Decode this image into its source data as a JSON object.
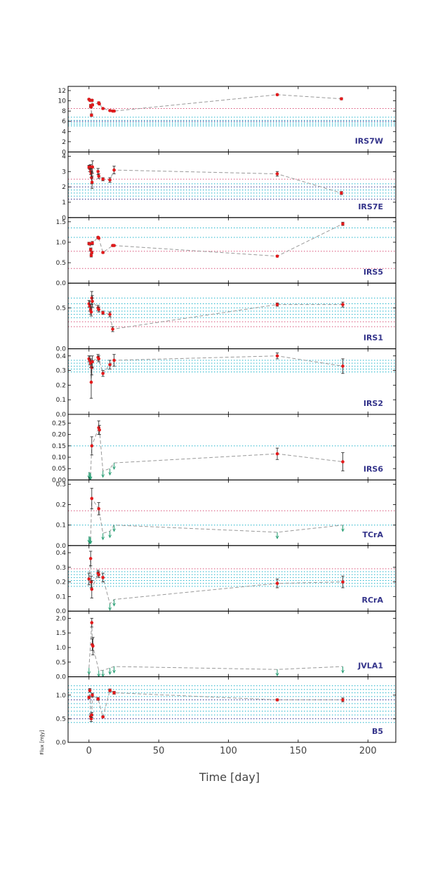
{
  "chart_data": {
    "type": "line",
    "x_title": "Time [day]",
    "y_title": "Flux [mJy]",
    "xlim": [
      -15,
      220
    ],
    "x_ticks": [
      0,
      50,
      100,
      150,
      200
    ],
    "colors": {
      "point": "#e31a1c",
      "connector": "#999999",
      "threshold_red": "#d9547a",
      "threshold_blue": "#2f2f8f",
      "threshold_cyan": "#22b5cc",
      "upper_limit": "#1f9a6e",
      "panel_name": "#33338a"
    },
    "panels": [
      {
        "name": "IRS7W",
        "ylim": [
          0,
          12
        ],
        "yticks": [
          0,
          2,
          4,
          6,
          8,
          10,
          12
        ],
        "points": [
          {
            "x": 0,
            "y": 10.3,
            "err": 0.15
          },
          {
            "x": 0.6,
            "y": 10.1,
            "err": 0.15
          },
          {
            "x": 1.2,
            "y": 9.0,
            "err": 0.3
          },
          {
            "x": 1.5,
            "y": 8.8,
            "err": 0.2
          },
          {
            "x": 1.8,
            "y": 7.2,
            "err": 0.25
          },
          {
            "x": 2.2,
            "y": 10.1,
            "err": 0.2
          },
          {
            "x": 2.5,
            "y": 9.2,
            "err": 0.2
          },
          {
            "x": 7,
            "y": 9.6,
            "err": 0.2
          },
          {
            "x": 7.4,
            "y": 9.4,
            "err": 0.15
          },
          {
            "x": 10,
            "y": 8.5,
            "err": 0.15
          },
          {
            "x": 15,
            "y": 8.1,
            "err": 0.15
          },
          {
            "x": 17,
            "y": 8.0,
            "err": 0.15
          },
          {
            "x": 18,
            "y": 8.0,
            "err": 0.15
          },
          {
            "x": 135,
            "y": 11.2,
            "err": 0.15
          },
          {
            "x": 181,
            "y": 10.4,
            "err": 0.2
          }
        ],
        "limits": [],
        "hlines": [
          {
            "y": 8.5,
            "color": "red"
          },
          {
            "y": 6.8,
            "color": "cyan"
          },
          {
            "y": 6.2,
            "color": "cyan"
          },
          {
            "y": 6.0,
            "color": "blue"
          },
          {
            "y": 5.7,
            "color": "cyan"
          },
          {
            "y": 5.4,
            "color": "cyan"
          },
          {
            "y": 5.1,
            "color": "cyan"
          }
        ]
      },
      {
        "name": "IRS7E",
        "ylim": [
          0,
          4
        ],
        "yticks": [
          0,
          1,
          2,
          3,
          4
        ],
        "points": [
          {
            "x": 0,
            "y": 3.3,
            "err": 0.1
          },
          {
            "x": 0.5,
            "y": 3.2,
            "err": 0.2
          },
          {
            "x": 1,
            "y": 3.3,
            "err": 0.15
          },
          {
            "x": 1.3,
            "y": 3.0,
            "err": 0.2
          },
          {
            "x": 1.6,
            "y": 2.9,
            "err": 0.3
          },
          {
            "x": 1.9,
            "y": 2.6,
            "err": 0.4
          },
          {
            "x": 2.2,
            "y": 2.3,
            "err": 0.4
          },
          {
            "x": 2.5,
            "y": 3.3,
            "err": 0.4
          },
          {
            "x": 6.5,
            "y": 3.0,
            "err": 0.2
          },
          {
            "x": 7,
            "y": 2.7,
            "err": 0.15
          },
          {
            "x": 10,
            "y": 2.5,
            "err": 0.1
          },
          {
            "x": 15,
            "y": 2.45,
            "err": 0.15
          },
          {
            "x": 18,
            "y": 3.1,
            "err": 0.25
          },
          {
            "x": 135,
            "y": 2.85,
            "err": 0.15
          },
          {
            "x": 181,
            "y": 1.6,
            "err": 0.1
          }
        ],
        "limits": [],
        "hlines": [
          {
            "y": 2.5,
            "color": "red"
          },
          {
            "y": 2.2,
            "color": "cyan"
          },
          {
            "y": 2.0,
            "color": "blue"
          },
          {
            "y": 1.8,
            "color": "cyan"
          },
          {
            "y": 1.6,
            "color": "cyan"
          },
          {
            "y": 1.4,
            "color": "cyan"
          },
          {
            "y": 1.2,
            "color": "blue"
          }
        ]
      },
      {
        "name": "IRS5",
        "ylim": [
          0,
          1.5
        ],
        "yticks": [
          0,
          0.5,
          1.0,
          1.5
        ],
        "ytick_labels": [
          "0.0",
          "0.5",
          "1.0",
          "1.5"
        ],
        "points": [
          {
            "x": 0,
            "y": 0.97,
            "err": 0.03
          },
          {
            "x": 0.6,
            "y": 0.96,
            "err": 0.03
          },
          {
            "x": 1.2,
            "y": 0.82,
            "err": 0.04
          },
          {
            "x": 1.6,
            "y": 0.68,
            "err": 0.04
          },
          {
            "x": 2,
            "y": 0.75,
            "err": 0.03
          },
          {
            "x": 2.4,
            "y": 0.98,
            "err": 0.04
          },
          {
            "x": 6.5,
            "y": 1.12,
            "err": 0.02
          },
          {
            "x": 7,
            "y": 1.1,
            "err": 0.02
          },
          {
            "x": 10,
            "y": 0.75,
            "err": 0.02
          },
          {
            "x": 17,
            "y": 0.92,
            "err": 0.02
          },
          {
            "x": 18,
            "y": 0.92,
            "err": 0.02
          },
          {
            "x": 135,
            "y": 0.66,
            "err": 0.02
          },
          {
            "x": 182,
            "y": 1.45,
            "err": 0.04
          }
        ],
        "limits": [],
        "hlines": [
          {
            "y": 1.35,
            "color": "cyan"
          },
          {
            "y": 1.12,
            "color": "cyan"
          },
          {
            "y": 0.78,
            "color": "red"
          },
          {
            "y": 0.36,
            "color": "red"
          }
        ]
      },
      {
        "name": "IRS1",
        "ylim": [
          0,
          0.75
        ],
        "yticks": [
          0,
          0.5
        ],
        "ytick_labels": [
          "0.0",
          "0.5"
        ],
        "points": [
          {
            "x": 0,
            "y": 0.55,
            "err": 0.04
          },
          {
            "x": 0.6,
            "y": 0.52,
            "err": 0.06
          },
          {
            "x": 1.2,
            "y": 0.48,
            "err": 0.06
          },
          {
            "x": 1.6,
            "y": 0.45,
            "err": 0.05
          },
          {
            "x": 2,
            "y": 0.62,
            "err": 0.08
          },
          {
            "x": 2.4,
            "y": 0.58,
            "err": 0.07
          },
          {
            "x": 6.5,
            "y": 0.5,
            "err": 0.03
          },
          {
            "x": 7,
            "y": 0.48,
            "err": 0.03
          },
          {
            "x": 10,
            "y": 0.44,
            "err": 0.02
          },
          {
            "x": 15,
            "y": 0.42,
            "err": 0.03
          },
          {
            "x": 17,
            "y": 0.24,
            "err": 0.03
          },
          {
            "x": 135,
            "y": 0.54,
            "err": 0.02
          },
          {
            "x": 182,
            "y": 0.54,
            "err": 0.03
          }
        ],
        "limits": [],
        "hlines": [
          {
            "y": 0.62,
            "color": "cyan"
          },
          {
            "y": 0.55,
            "color": "cyan"
          },
          {
            "y": 0.5,
            "color": "cyan"
          },
          {
            "y": 0.46,
            "color": "cyan"
          },
          {
            "y": 0.42,
            "color": "cyan"
          },
          {
            "y": 0.38,
            "color": "cyan"
          },
          {
            "y": 0.33,
            "color": "red"
          },
          {
            "y": 0.27,
            "color": "red"
          }
        ]
      },
      {
        "name": "IRS2",
        "ylim": [
          0,
          0.42
        ],
        "yticks": [
          0,
          0.1,
          0.2,
          0.3,
          0.4
        ],
        "ytick_labels": [
          "0.0",
          "0.1",
          "0.2",
          "0.3",
          "0.4"
        ],
        "points": [
          {
            "x": 0,
            "y": 0.38,
            "err": 0.02
          },
          {
            "x": 0.6,
            "y": 0.37,
            "err": 0.03
          },
          {
            "x": 1.2,
            "y": 0.35,
            "err": 0.03
          },
          {
            "x": 1.6,
            "y": 0.22,
            "err": 0.11
          },
          {
            "x": 2,
            "y": 0.32,
            "err": 0.05
          },
          {
            "x": 2.4,
            "y": 0.36,
            "err": 0.04
          },
          {
            "x": 6.5,
            "y": 0.39,
            "err": 0.02
          },
          {
            "x": 7,
            "y": 0.38,
            "err": 0.02
          },
          {
            "x": 10,
            "y": 0.28,
            "err": 0.02
          },
          {
            "x": 15,
            "y": 0.34,
            "err": 0.03
          },
          {
            "x": 18,
            "y": 0.37,
            "err": 0.04
          },
          {
            "x": 135,
            "y": 0.4,
            "err": 0.02
          },
          {
            "x": 182,
            "y": 0.33,
            "err": 0.05
          }
        ],
        "limits": [],
        "hlines": [
          {
            "y": 0.37,
            "color": "cyan"
          },
          {
            "y": 0.35,
            "color": "cyan"
          },
          {
            "y": 0.33,
            "color": "cyan"
          },
          {
            "y": 0.31,
            "color": "cyan"
          },
          {
            "y": 0.29,
            "color": "cyan"
          }
        ]
      },
      {
        "name": "IRS6",
        "ylim": [
          0,
          0.27
        ],
        "yticks": [
          0,
          0.05,
          0.1,
          0.15,
          0.2,
          0.25
        ],
        "ytick_labels": [
          "0.00",
          "0.05",
          "0.10",
          "0.15",
          "0.20",
          "0.25"
        ],
        "points": [
          {
            "x": 2,
            "y": 0.15,
            "err": 0.04
          },
          {
            "x": 7,
            "y": 0.23,
            "err": 0.03
          },
          {
            "x": 7.5,
            "y": 0.22,
            "err": 0.02
          },
          {
            "x": 135,
            "y": 0.115,
            "err": 0.025
          },
          {
            "x": 182,
            "y": 0.08,
            "err": 0.04
          }
        ],
        "limits": [
          {
            "x": 0,
            "y": 0.035
          },
          {
            "x": 0.6,
            "y": 0.03
          },
          {
            "x": 1.2,
            "y": 0.03
          },
          {
            "x": 10,
            "y": 0.04
          },
          {
            "x": 15,
            "y": 0.05
          },
          {
            "x": 18,
            "y": 0.075
          }
        ],
        "hlines": [
          {
            "y": 0.15,
            "color": "cyan"
          }
        ]
      },
      {
        "name": "TCrA",
        "ylim": [
          0,
          0.3
        ],
        "yticks": [
          0,
          0.1,
          0.2,
          0.3
        ],
        "ytick_labels": [
          "0.0",
          "0.1",
          "0.2",
          "0.3"
        ],
        "points": [
          {
            "x": 2,
            "y": 0.23,
            "err": 0.05
          },
          {
            "x": 7,
            "y": 0.18,
            "err": 0.03
          }
        ],
        "limits": [
          {
            "x": 0,
            "y": 0.045
          },
          {
            "x": 0.6,
            "y": 0.04
          },
          {
            "x": 1.2,
            "y": 0.04
          },
          {
            "x": 10,
            "y": 0.06
          },
          {
            "x": 15,
            "y": 0.07
          },
          {
            "x": 18,
            "y": 0.1
          },
          {
            "x": 135,
            "y": 0.065
          },
          {
            "x": 182,
            "y": 0.1
          }
        ],
        "hlines": [
          {
            "y": 0.17,
            "color": "red"
          },
          {
            "y": 0.1,
            "color": "cyan"
          }
        ]
      },
      {
        "name": "RCrA",
        "ylim": [
          0,
          0.42
        ],
        "yticks": [
          0,
          0.1,
          0.2,
          0.3,
          0.4
        ],
        "ytick_labels": [
          "0.0",
          "0.1",
          "0.2",
          "0.3",
          "0.4"
        ],
        "points": [
          {
            "x": 0,
            "y": 0.22,
            "err": 0.04
          },
          {
            "x": 1.2,
            "y": 0.36,
            "err": 0.05
          },
          {
            "x": 1.6,
            "y": 0.2,
            "err": 0.04
          },
          {
            "x": 2,
            "y": 0.15,
            "err": 0.06
          },
          {
            "x": 6.5,
            "y": 0.26,
            "err": 0.02
          },
          {
            "x": 7,
            "y": 0.25,
            "err": 0.02
          },
          {
            "x": 10,
            "y": 0.23,
            "err": 0.03
          },
          {
            "x": 135,
            "y": 0.19,
            "err": 0.03
          },
          {
            "x": 182,
            "y": 0.2,
            "err": 0.04
          }
        ],
        "limits": [
          {
            "x": 15,
            "y": 0.05
          },
          {
            "x": 18,
            "y": 0.08
          }
        ],
        "hlines": [
          {
            "y": 0.29,
            "color": "red"
          },
          {
            "y": 0.27,
            "color": "cyan"
          },
          {
            "y": 0.25,
            "color": "cyan"
          },
          {
            "y": 0.23,
            "color": "cyan"
          },
          {
            "y": 0.21,
            "color": "cyan"
          },
          {
            "y": 0.19,
            "color": "cyan"
          },
          {
            "y": 0.17,
            "color": "cyan"
          }
        ]
      },
      {
        "name": "JVLA1",
        "ylim": [
          0,
          2.1
        ],
        "yticks": [
          0,
          0.5,
          1.0,
          1.5,
          2.0
        ],
        "ytick_labels": [
          "0.0",
          "0.5",
          "1.0",
          "1.5",
          "2.0"
        ],
        "points": [
          {
            "x": 2,
            "y": 1.85,
            "err": 0.15
          },
          {
            "x": 2.4,
            "y": 1.1,
            "err": 0.2
          },
          {
            "x": 2.8,
            "y": 1.05,
            "err": 0.3
          }
        ],
        "limits": [
          {
            "x": 0,
            "y": 0.3
          },
          {
            "x": 7,
            "y": 0.22
          },
          {
            "x": 10,
            "y": 0.22
          },
          {
            "x": 15,
            "y": 0.3
          },
          {
            "x": 18,
            "y": 0.35
          },
          {
            "x": 135,
            "y": 0.25
          },
          {
            "x": 182,
            "y": 0.35
          }
        ],
        "hlines": []
      },
      {
        "name": "B5",
        "ylim": [
          0,
          1.3
        ],
        "yticks": [
          0,
          0.5,
          1.0
        ],
        "ytick_labels": [
          "0.0",
          "0.5",
          "1.0"
        ],
        "points": [
          {
            "x": 0,
            "y": 0.95,
            "err": 0.03
          },
          {
            "x": 0.6,
            "y": 1.1,
            "err": 0.04
          },
          {
            "x": 1.2,
            "y": 0.55,
            "err": 0.05
          },
          {
            "x": 1.6,
            "y": 0.5,
            "err": 0.06
          },
          {
            "x": 2,
            "y": 0.58,
            "err": 0.05
          },
          {
            "x": 2.4,
            "y": 1.0,
            "err": 0.04
          },
          {
            "x": 6.5,
            "y": 0.92,
            "err": 0.03
          },
          {
            "x": 10,
            "y": 0.54,
            "err": 0.02
          },
          {
            "x": 15,
            "y": 1.1,
            "err": 0.03
          },
          {
            "x": 18,
            "y": 1.05,
            "err": 0.03
          },
          {
            "x": 135,
            "y": 0.9,
            "err": 0.02
          },
          {
            "x": 182,
            "y": 0.9,
            "err": 0.04
          }
        ],
        "limits": [],
        "hlines": [
          {
            "y": 1.2,
            "color": "cyan"
          },
          {
            "y": 1.12,
            "color": "cyan"
          },
          {
            "y": 1.05,
            "color": "cyan"
          },
          {
            "y": 0.97,
            "color": "cyan"
          },
          {
            "y": 0.9,
            "color": "blue"
          },
          {
            "y": 0.82,
            "color": "cyan"
          },
          {
            "y": 0.74,
            "color": "cyan"
          },
          {
            "y": 0.66,
            "color": "cyan"
          },
          {
            "y": 0.58,
            "color": "cyan"
          },
          {
            "y": 0.5,
            "color": "blue"
          },
          {
            "y": 0.42,
            "color": "cyan"
          }
        ]
      }
    ]
  }
}
